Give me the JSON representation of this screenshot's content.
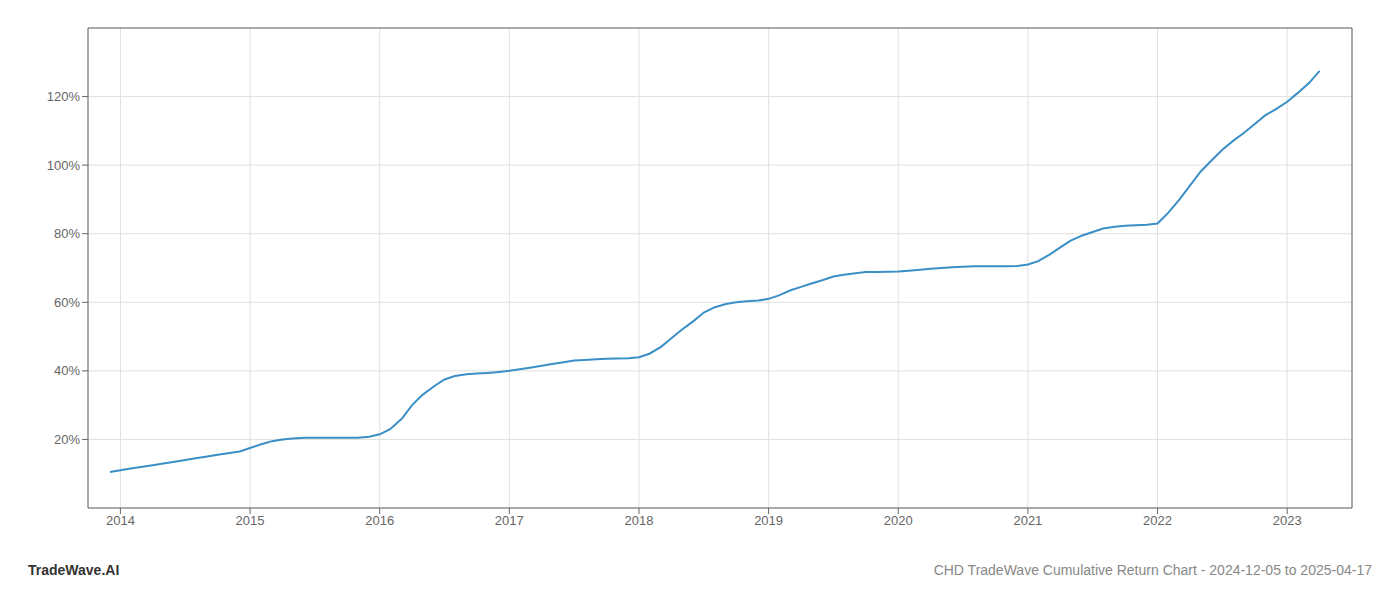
{
  "chart_data": {
    "type": "line",
    "annotations": [
      "TradeWave.AI",
      "CHD TradeWave Cumulative Return Chart - 2024-12-05 to 2025-04-17"
    ],
    "x": [
      2013.92,
      2014.0,
      2014.08,
      2014.17,
      2014.25,
      2014.33,
      2014.42,
      2014.5,
      2014.58,
      2014.67,
      2014.75,
      2014.83,
      2014.92,
      2015.0,
      2015.08,
      2015.17,
      2015.25,
      2015.33,
      2015.42,
      2015.5,
      2015.58,
      2015.67,
      2015.75,
      2015.83,
      2015.92,
      2016.0,
      2016.08,
      2016.17,
      2016.25,
      2016.33,
      2016.42,
      2016.5,
      2016.58,
      2016.67,
      2016.75,
      2016.83,
      2016.92,
      2017.0,
      2017.08,
      2017.17,
      2017.25,
      2017.33,
      2017.42,
      2017.5,
      2017.58,
      2017.67,
      2017.75,
      2017.83,
      2017.92,
      2018.0,
      2018.08,
      2018.17,
      2018.25,
      2018.33,
      2018.42,
      2018.5,
      2018.58,
      2018.67,
      2018.75,
      2018.83,
      2018.92,
      2019.0,
      2019.08,
      2019.17,
      2019.25,
      2019.33,
      2019.42,
      2019.5,
      2019.58,
      2019.67,
      2019.75,
      2019.83,
      2019.92,
      2020.0,
      2020.08,
      2020.17,
      2020.25,
      2020.33,
      2020.42,
      2020.5,
      2020.58,
      2020.67,
      2020.75,
      2020.83,
      2020.92,
      2021.0,
      2021.08,
      2021.17,
      2021.25,
      2021.33,
      2021.42,
      2021.5,
      2021.58,
      2021.67,
      2021.75,
      2021.83,
      2021.92,
      2022.0,
      2022.08,
      2022.17,
      2022.25,
      2022.33,
      2022.42,
      2022.5,
      2022.58,
      2022.67,
      2022.75,
      2022.83,
      2022.92,
      2023.0,
      2023.08,
      2023.17,
      2023.25
    ],
    "values": [
      10.5,
      11.0,
      11.5,
      12.0,
      12.5,
      13.0,
      13.5,
      14.0,
      14.5,
      15.0,
      15.5,
      16.0,
      16.5,
      17.5,
      18.5,
      19.5,
      20.0,
      20.3,
      20.5,
      20.5,
      20.5,
      20.5,
      20.5,
      20.5,
      20.8,
      21.5,
      23.0,
      26.0,
      30.0,
      33.0,
      35.5,
      37.5,
      38.5,
      39.0,
      39.2,
      39.4,
      39.7,
      40.0,
      40.5,
      41.0,
      41.5,
      42.0,
      42.5,
      43.0,
      43.2,
      43.4,
      43.5,
      43.6,
      43.7,
      44.0,
      45.0,
      47.0,
      49.5,
      52.0,
      54.5,
      57.0,
      58.5,
      59.5,
      60.0,
      60.3,
      60.5,
      61.0,
      62.0,
      63.5,
      64.5,
      65.5,
      66.5,
      67.5,
      68.0,
      68.5,
      68.8,
      68.8,
      68.9,
      69.0,
      69.2,
      69.5,
      69.8,
      70.0,
      70.2,
      70.4,
      70.5,
      70.5,
      70.5,
      70.5,
      70.6,
      71.0,
      72.0,
      74.0,
      76.0,
      78.0,
      79.5,
      80.5,
      81.5,
      82.0,
      82.3,
      82.5,
      82.6,
      83.0,
      86.0,
      90.0,
      94.0,
      98.0,
      101.5,
      104.5,
      107.0,
      109.5,
      112.0,
      114.5,
      116.5,
      118.5,
      121.0,
      124.0,
      127.5
    ],
    "color": "#3a8fc7",
    "xlim": [
      2013.75,
      2023.5
    ],
    "xticks": [
      2014,
      2015,
      2016,
      2017,
      2018,
      2019,
      2020,
      2021,
      2022,
      2023
    ],
    "ylim": [
      0,
      140
    ],
    "yticks": [
      {
        "value": 20,
        "label": "20%"
      },
      {
        "value": 40,
        "label": "40%"
      },
      {
        "value": 60,
        "label": "60%"
      },
      {
        "value": 80,
        "label": "80%"
      },
      {
        "value": 100,
        "label": "100%"
      },
      {
        "value": 120,
        "label": "120%"
      }
    ],
    "grid": true
  }
}
